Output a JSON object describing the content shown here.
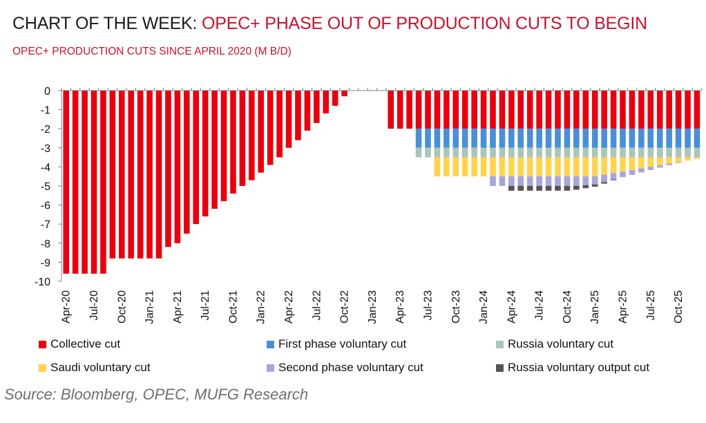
{
  "header": {
    "title_lead": "CHART OF THE WEEK: ",
    "title_highlight": "OPEC+ PHASE OUT OF PRODUCTION CUTS TO BEGIN",
    "subtitle": "OPEC+ PRODUCTION CUTS SINCE APRIL 2020 (M B/D)"
  },
  "source": "Source: Bloomberg, OPEC, MUFG Research",
  "colors": {
    "collective": "#e8000e",
    "first_phase": "#4a8fd6",
    "russia_voluntary": "#a9c6b8",
    "saudi": "#ffd34d",
    "second_phase": "#a7a5dc",
    "russia_output": "#555555",
    "title_red": "#c8102e",
    "axis": "#808080"
  },
  "legend": [
    {
      "label": "Collective cut",
      "color": "#e8000e"
    },
    {
      "label": "First phase voluntary cut",
      "color": "#4a8fd6"
    },
    {
      "label": "Russia voluntary cut",
      "color": "#a9c6b8"
    },
    {
      "label": "Saudi voluntary cut",
      "color": "#ffd34d"
    },
    {
      "label": "Second phase voluntary cut",
      "color": "#a7a5dc"
    },
    {
      "label": "Russia voluntary output cut",
      "color": "#555555"
    }
  ],
  "chart_data": {
    "type": "bar",
    "stacked": true,
    "ylim": [
      -10,
      0
    ],
    "yticks": [
      0,
      -1,
      -2,
      -3,
      -4,
      -5,
      -6,
      -7,
      -8,
      -9,
      -10
    ],
    "x_tick_labels": [
      "Apr-20",
      "Jul-20",
      "Oct-20",
      "Jan-21",
      "Apr-21",
      "Jul-21",
      "Oct-21",
      "Jan-22",
      "Apr-22",
      "Jul-22",
      "Oct-22",
      "Jan-23",
      "Apr-23",
      "Jul-23",
      "Oct-23",
      "Jan-24",
      "Apr-24",
      "Jul-24",
      "Oct-24",
      "Jan-25",
      "Apr-25",
      "Jul-25",
      "Oct-25"
    ],
    "x_start": "Apr-20",
    "x_frequency": "monthly",
    "grid": false,
    "legend_position": "bottom",
    "series": [
      {
        "name": "Collective cut",
        "values": [
          -9.6,
          -9.6,
          -9.6,
          -9.6,
          -9.6,
          -8.8,
          -8.8,
          -8.8,
          -8.8,
          -8.8,
          -8.8,
          -8.2,
          -8.0,
          -7.5,
          -7.0,
          -6.6,
          -6.2,
          -5.8,
          -5.4,
          -5.0,
          -4.7,
          -4.3,
          -3.9,
          -3.5,
          -3.0,
          -2.6,
          -2.1,
          -1.7,
          -1.2,
          -0.8,
          -0.3,
          0,
          0,
          0,
          0,
          -2,
          -2,
          -2,
          -2,
          -2,
          -2,
          -2,
          -2,
          -2,
          -2,
          -2,
          -2,
          -2,
          -2,
          -2,
          -2,
          -2,
          -2,
          -2,
          -2,
          -2,
          -2,
          -2,
          -2,
          -2,
          -2,
          -2,
          -2,
          -2,
          -2,
          -2,
          -2,
          -2,
          -2
        ]
      },
      {
        "name": "First phase voluntary cut",
        "values": [
          0,
          0,
          0,
          0,
          0,
          0,
          0,
          0,
          0,
          0,
          0,
          0,
          0,
          0,
          0,
          0,
          0,
          0,
          0,
          0,
          0,
          0,
          0,
          0,
          0,
          0,
          0,
          0,
          0,
          0,
          0,
          0,
          0,
          0,
          0,
          0,
          0,
          0,
          -1,
          -1,
          -1,
          -1,
          -1,
          -1,
          -1,
          -1,
          -1,
          -1,
          -1,
          -1,
          -1,
          -1,
          -1,
          -1,
          -1,
          -1,
          -1,
          -1,
          -1,
          -1,
          -1,
          -1,
          -1,
          -1,
          -1,
          -1,
          -1,
          -1,
          -1
        ]
      },
      {
        "name": "Russia voluntary cut",
        "values": [
          0,
          0,
          0,
          0,
          0,
          0,
          0,
          0,
          0,
          0,
          0,
          0,
          0,
          0,
          0,
          0,
          0,
          0,
          0,
          0,
          0,
          0,
          0,
          0,
          0,
          0,
          0,
          0,
          0,
          0,
          0,
          0,
          0,
          0,
          0,
          0,
          0,
          0,
          -0.5,
          -0.5,
          -0.5,
          -0.5,
          -0.5,
          -0.5,
          -0.5,
          -0.5,
          -0.5,
          -0.5,
          -0.5,
          -0.5,
          -0.5,
          -0.5,
          -0.5,
          -0.5,
          -0.5,
          -0.5,
          -0.5,
          -0.5,
          -0.5,
          -0.5,
          -0.5,
          -0.5,
          -0.5,
          -0.5,
          -0.5,
          -0.5,
          -0.5,
          -0.5,
          -0.5
        ]
      },
      {
        "name": "Saudi voluntary cut",
        "values": [
          0,
          0,
          0,
          0,
          0,
          0,
          0,
          0,
          0,
          0,
          0,
          0,
          0,
          0,
          0,
          0,
          0,
          0,
          0,
          0,
          0,
          0,
          0,
          0,
          0,
          0,
          0,
          0,
          0,
          0,
          0,
          0,
          0,
          0,
          0,
          0,
          0,
          0,
          0,
          0,
          -1,
          -1,
          -1,
          -1,
          -1,
          -1,
          -1,
          -1,
          -1,
          -1,
          -1,
          -1,
          -1,
          -1,
          -1,
          -1,
          -1,
          -1,
          -0.92,
          -0.83,
          -0.75,
          -0.67,
          -0.58,
          -0.5,
          -0.42,
          -0.33,
          -0.25,
          -0.17,
          -0.08
        ]
      },
      {
        "name": "Second phase voluntary cut",
        "values": [
          0,
          0,
          0,
          0,
          0,
          0,
          0,
          0,
          0,
          0,
          0,
          0,
          0,
          0,
          0,
          0,
          0,
          0,
          0,
          0,
          0,
          0,
          0,
          0,
          0,
          0,
          0,
          0,
          0,
          0,
          0,
          0,
          0,
          0,
          0,
          0,
          0,
          0,
          0,
          0,
          0,
          0,
          0,
          0,
          0,
          0,
          -0.5,
          -0.5,
          -0.5,
          -0.5,
          -0.5,
          -0.5,
          -0.5,
          -0.5,
          -0.5,
          -0.5,
          -0.46,
          -0.42,
          -0.38,
          -0.33,
          -0.29,
          -0.25,
          -0.21,
          -0.17,
          -0.12,
          -0.08,
          -0.04,
          0,
          0
        ]
      },
      {
        "name": "Russia voluntary output cut",
        "values": [
          0,
          0,
          0,
          0,
          0,
          0,
          0,
          0,
          0,
          0,
          0,
          0,
          0,
          0,
          0,
          0,
          0,
          0,
          0,
          0,
          0,
          0,
          0,
          0,
          0,
          0,
          0,
          0,
          0,
          0,
          0,
          0,
          0,
          0,
          0,
          0,
          0,
          0,
          0,
          0,
          0,
          0,
          0,
          0,
          0,
          0,
          0,
          0,
          -0.25,
          -0.25,
          -0.25,
          -0.25,
          -0.25,
          -0.25,
          -0.25,
          -0.2,
          -0.16,
          -0.12,
          -0.08,
          -0.04,
          0,
          0,
          0,
          0,
          0,
          0,
          0,
          0,
          0
        ]
      }
    ]
  }
}
